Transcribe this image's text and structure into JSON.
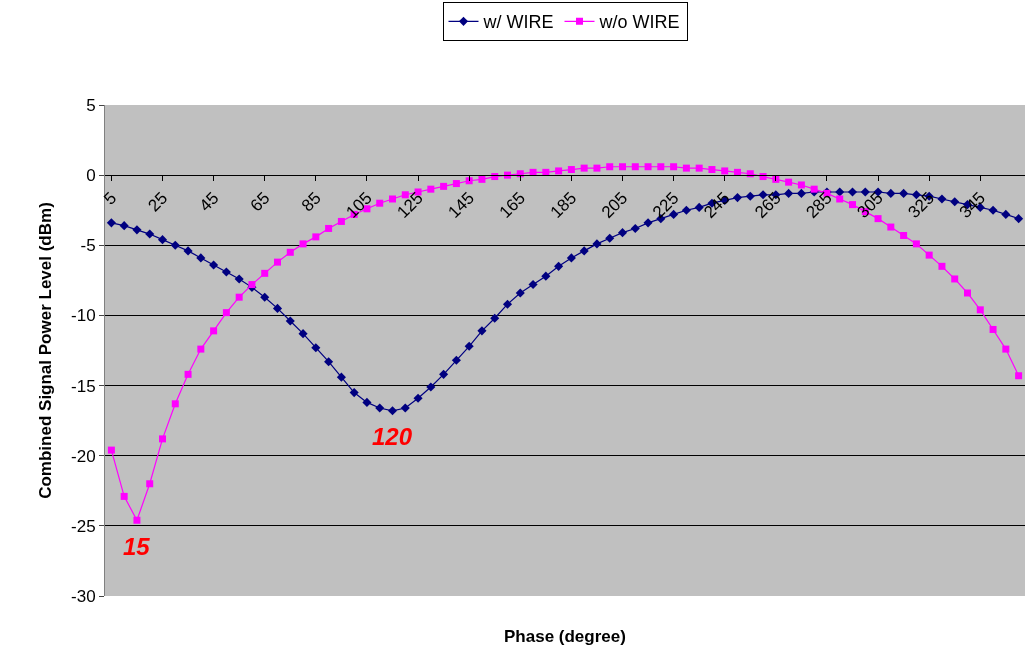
{
  "chart_data": {
    "type": "line",
    "xlabel": "Phase (degree)",
    "ylabel": "Combined Signal Power Level (dBm)",
    "categories": [
      "5",
      null,
      null,
      null,
      "25",
      null,
      null,
      null,
      "45",
      null,
      null,
      null,
      "65",
      null,
      null,
      null,
      "85",
      null,
      null,
      null,
      "105",
      null,
      null,
      null,
      "125",
      null,
      null,
      null,
      "145",
      null,
      null,
      null,
      "165",
      null,
      null,
      null,
      "185",
      null,
      null,
      null,
      "205",
      null,
      null,
      null,
      "225",
      null,
      null,
      null,
      "245",
      null,
      null,
      null,
      "265",
      null,
      null,
      null,
      "285",
      null,
      null,
      null,
      "305",
      null,
      null,
      null,
      "325",
      null,
      null,
      null,
      "345",
      null,
      null,
      null
    ],
    "series": [
      {
        "name": "w/ WIRE",
        "color": "#000080",
        "marker": "diamond",
        "values": [
          -3.4,
          -3.6,
          -3.9,
          -4.2,
          -4.6,
          -5.0,
          -5.4,
          -5.9,
          -6.4,
          -6.9,
          -7.4,
          -8.0,
          -8.7,
          -9.5,
          -10.4,
          -11.3,
          -12.3,
          -13.3,
          -14.4,
          -15.5,
          -16.2,
          -16.6,
          -16.8,
          -16.6,
          -15.9,
          -15.1,
          -14.2,
          -13.2,
          -12.2,
          -11.1,
          -10.2,
          -9.2,
          -8.4,
          -7.8,
          -7.2,
          -6.5,
          -5.9,
          -5.4,
          -4.9,
          -4.5,
          -4.1,
          -3.8,
          -3.4,
          -3.1,
          -2.8,
          -2.5,
          -2.3,
          -2.0,
          -1.8,
          -1.6,
          -1.5,
          -1.4,
          -1.4,
          -1.3,
          -1.3,
          -1.2,
          -1.2,
          -1.2,
          -1.2,
          -1.2,
          -1.2,
          -1.3,
          -1.3,
          -1.4,
          -1.5,
          -1.7,
          -1.9,
          -2.1,
          -2.3,
          -2.5,
          -2.8,
          -3.1
        ]
      },
      {
        "name": "w/o WIRE",
        "color": "#ff00ff",
        "marker": "square",
        "values": [
          -19.6,
          -22.9,
          -24.6,
          -22.0,
          -18.8,
          -16.3,
          -14.2,
          -12.4,
          -11.1,
          -9.8,
          -8.7,
          -7.8,
          -7.0,
          -6.2,
          -5.5,
          -4.9,
          -4.4,
          -3.8,
          -3.3,
          -2.8,
          -2.4,
          -2.0,
          -1.7,
          -1.4,
          -1.2,
          -1.0,
          -0.8,
          -0.6,
          -0.4,
          -0.3,
          -0.1,
          0.0,
          0.1,
          0.2,
          0.2,
          0.3,
          0.4,
          0.5,
          0.5,
          0.6,
          0.6,
          0.6,
          0.6,
          0.6,
          0.6,
          0.5,
          0.5,
          0.4,
          0.3,
          0.2,
          0.1,
          -0.1,
          -0.3,
          -0.5,
          -0.7,
          -1.0,
          -1.3,
          -1.7,
          -2.1,
          -2.6,
          -3.1,
          -3.7,
          -4.3,
          -4.9,
          -5.7,
          -6.5,
          -7.4,
          -8.4,
          -9.6,
          -11.0,
          -12.4,
          -14.3
        ]
      }
    ],
    "annotations": [
      {
        "text": "15",
        "y": -24.6
      },
      {
        "text": "120",
        "y": -16.8
      }
    ],
    "ylim": [
      -30,
      5
    ],
    "yticks": [
      -30,
      -25,
      -20,
      -15,
      -10,
      -5,
      0,
      5
    ],
    "grid": "y",
    "legend": "top"
  }
}
